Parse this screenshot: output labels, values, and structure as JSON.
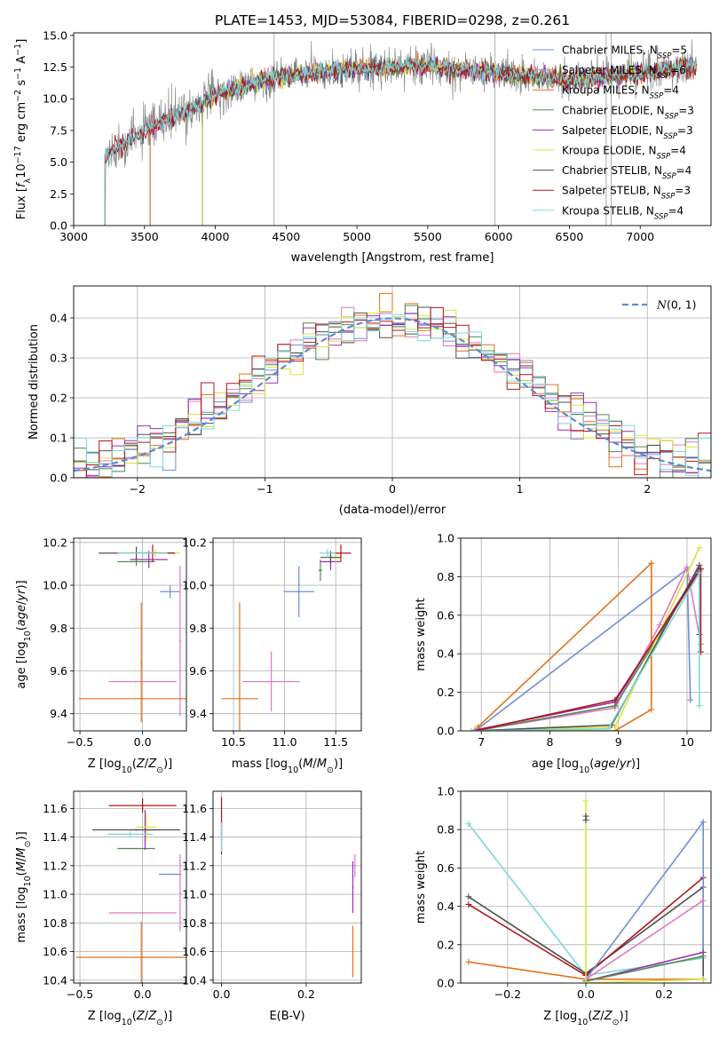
{
  "title": "PLATE=1453, MJD=53084, FIBERID=0298, z=0.261",
  "colors": {
    "chabrier_miles": "#6d8fd6",
    "salpeter_miles": "#e377c2",
    "kroupa_miles": "#e4711b",
    "chabrier_elodie": "#4f8a4f",
    "salpeter_elodie": "#9b30b5",
    "kroupa_elodie": "#d8e43a",
    "chabrier_stelib": "#505050",
    "salpeter_stelib": "#b0151b",
    "kroupa_stelib": "#7dd8dc",
    "normal_curve": "#5a8ad6",
    "grid": "#b0b0b0"
  },
  "chart_data": [
    {
      "id": "spectrum",
      "type": "line",
      "xlabel": "wavelength [Angstrom, rest frame]",
      "ylabel": "Flux [f_λ 10^-17 erg cm^-2 s^-1 A^-1]",
      "xlim": [
        3000,
        7500
      ],
      "ylim": [
        0,
        15.2
      ],
      "xticks": [
        "3000",
        "3500",
        "4000",
        "4500",
        "5000",
        "5500",
        "6000",
        "6500",
        "7000"
      ],
      "yticks": [
        "0.0",
        "2.5",
        "5.0",
        "7.5",
        "10.0",
        "12.5",
        "15.0"
      ],
      "legend": [
        "Chabrier MILES, N_SSP=5",
        "Salpeter MILES, N_SSP=6",
        "Kroupa MILES, N_SSP=4",
        "Chabrier ELODIE, N_SSP=3",
        "Salpeter ELODIE, N_SSP=3",
        "Kroupa ELODIE, N_SSP=4",
        "Chabrier STELIB, N_SSP=4",
        "Salpeter STELIB, N_SSP=3",
        "Kroupa STELIB, N_SSP=4"
      ],
      "legend_placement": "right",
      "model_start_wavelength": {
        "stelib": 3220,
        "miles": 3540,
        "elodie": 3910
      },
      "observed_range": [
        3220,
        7400
      ],
      "continuum_shape": [
        [
          3220,
          5.5
        ],
        [
          3400,
          6.8
        ],
        [
          3600,
          8.0
        ],
        [
          3800,
          9.0
        ],
        [
          4000,
          10.3
        ],
        [
          4300,
          11.3
        ],
        [
          4600,
          12.0
        ],
        [
          5000,
          12.4
        ],
        [
          5500,
          12.6
        ],
        [
          6000,
          12.0
        ],
        [
          6500,
          11.5
        ],
        [
          7000,
          12.0
        ],
        [
          7400,
          12.5
        ]
      ]
    },
    {
      "id": "residuals",
      "type": "histogram",
      "xlabel": "(data-model)/error",
      "ylabel": "Normed distribution",
      "xlim": [
        -2.5,
        2.5
      ],
      "ylim": [
        0,
        0.48
      ],
      "xticks": [
        "−2",
        "−1",
        "0",
        "1",
        "2"
      ],
      "yticks": [
        "0.0",
        "0.1",
        "0.2",
        "0.3",
        "0.4"
      ],
      "legend": [
        "N(0,1)"
      ],
      "legend_placement": "top-right",
      "bin_width": 0.1,
      "reference": "standard normal N(0,1)"
    },
    {
      "id": "age_vs_Z",
      "type": "scatter",
      "xlabel": "Z [log10(Z/Z⊙)]",
      "ylabel": "age [log10(age/yr)]",
      "xlim": [
        -0.55,
        0.35
      ],
      "ylim": [
        9.32,
        10.22
      ],
      "xticks": [
        "−0.5",
        "0.0"
      ],
      "yticks": [
        "9.4",
        "9.6",
        "9.8",
        "10.0",
        "10.2"
      ],
      "points": [
        {
          "model": "chabrier_miles",
          "x": 0.22,
          "y": 9.97,
          "xerr": 0.08,
          "yerr": 0.03
        },
        {
          "model": "salpeter_miles",
          "x": 0.0,
          "y": 9.55,
          "xerr": 0.27,
          "yerr": 0.0
        },
        {
          "model": "salpeter_miles",
          "x": 0.3,
          "y": 9.74,
          "xerr": 0.0,
          "yerr": 0.35
        },
        {
          "model": "kroupa_miles",
          "x": -0.01,
          "y": 9.47,
          "xerr": 0.5,
          "yerr": 0.0
        },
        {
          "model": "kroupa_miles",
          "x": -0.01,
          "y": 9.64,
          "xerr": 0.0,
          "yerr": 0.28
        },
        {
          "model": "chabrier_elodie",
          "x": -0.05,
          "y": 10.11,
          "xerr": 0.15,
          "yerr": 0.02
        },
        {
          "model": "salpeter_elodie",
          "x": 0.05,
          "y": 10.12,
          "xerr": 0.15,
          "yerr": 0.04
        },
        {
          "model": "kroupa_elodie",
          "x": 0.1,
          "y": 10.15,
          "xerr": 0.2,
          "yerr": 0.02
        },
        {
          "model": "chabrier_stelib",
          "x": -0.05,
          "y": 10.15,
          "xerr": 0.3,
          "yerr": 0.03
        },
        {
          "model": "salpeter_stelib",
          "x": 0.08,
          "y": 10.15,
          "xerr": 0.18,
          "yerr": 0.04
        },
        {
          "model": "kroupa_stelib",
          "x": 0.0,
          "y": 10.15,
          "xerr": 0.2,
          "yerr": 0.02
        }
      ]
    },
    {
      "id": "age_vs_mass",
      "type": "scatter",
      "xlabel": "mass [log10(M/M⊙)]",
      "ylabel": "",
      "xlim": [
        10.3,
        11.75
      ],
      "ylim": [
        9.32,
        10.22
      ],
      "xticks": [
        "10.5",
        "11.0",
        "11.5"
      ],
      "yticks": [
        "9.4",
        "9.6",
        "9.8",
        "10.0",
        "10.2"
      ],
      "points": [
        {
          "model": "chabrier_miles",
          "x": 11.14,
          "y": 9.97,
          "xerr": 0.15,
          "yerr": 0.12
        },
        {
          "model": "salpeter_miles",
          "x": 10.87,
          "y": 9.55,
          "xerr": 0.28,
          "yerr": 0.14
        },
        {
          "model": "kroupa_miles",
          "x": 10.56,
          "y": 9.47,
          "xerr": 0.18,
          "yerr": 0.45
        },
        {
          "model": "chabrier_elodie",
          "x": 11.35,
          "y": 10.07,
          "xerr": 0.02,
          "yerr": 0.05
        },
        {
          "model": "salpeter_elodie",
          "x": 11.45,
          "y": 10.11,
          "xerr": 0.1,
          "yerr": 0.04
        },
        {
          "model": "kroupa_elodie",
          "x": 11.5,
          "y": 10.13,
          "xerr": 0.08,
          "yerr": 0.02
        },
        {
          "model": "chabrier_stelib",
          "x": 11.45,
          "y": 10.13,
          "xerr": 0.1,
          "yerr": 0.03
        },
        {
          "model": "salpeter_stelib",
          "x": 11.55,
          "y": 10.15,
          "xerr": 0.1,
          "yerr": 0.04
        },
        {
          "model": "kroupa_stelib",
          "x": 11.42,
          "y": 10.15,
          "xerr": 0.08,
          "yerr": 0.02
        }
      ]
    },
    {
      "id": "weight_vs_age",
      "type": "line",
      "xlabel": "age [log10(age/yr)]",
      "ylabel": "mass weight",
      "xlim": [
        6.7,
        10.35
      ],
      "ylim": [
        0,
        1
      ],
      "xticks": [
        "7",
        "8",
        "9",
        "10"
      ],
      "yticks": [
        "0.0",
        "0.2",
        "0.4",
        "0.6",
        "0.8",
        "1.0"
      ],
      "series": [
        {
          "model": "chabrier_miles",
          "x": [
            6.95,
            10.0,
            10.05
          ],
          "y": [
            0.01,
            0.84,
            0.16
          ]
        },
        {
          "model": "salpeter_miles",
          "x": [
            6.9,
            8.95,
            9.6,
            10.0,
            10.2
          ],
          "y": [
            0.0,
            0.12,
            0.55,
            0.85,
            0.45
          ]
        },
        {
          "model": "kroupa_miles",
          "x": [
            6.95,
            9.48,
            9.48,
            8.95,
            6.9
          ],
          "y": [
            0.02,
            0.87,
            0.11,
            0.0,
            0.0
          ]
        },
        {
          "model": "chabrier_elodie",
          "x": [
            6.9,
            8.95,
            10.18
          ],
          "y": [
            0.0,
            0.13,
            0.83
          ]
        },
        {
          "model": "salpeter_elodie",
          "x": [
            6.85,
            8.95,
            10.18
          ],
          "y": [
            0.0,
            0.15,
            0.84
          ]
        },
        {
          "model": "kroupa_elodie",
          "x": [
            6.85,
            8.95,
            10.18
          ],
          "y": [
            0.0,
            0.02,
            0.95
          ]
        },
        {
          "model": "chabrier_stelib",
          "x": [
            6.9,
            8.9,
            10.18,
            10.18
          ],
          "y": [
            0.0,
            0.03,
            0.86,
            0.5
          ]
        },
        {
          "model": "salpeter_stelib",
          "x": [
            6.9,
            8.95,
            10.2,
            10.2
          ],
          "y": [
            0.0,
            0.16,
            0.84,
            0.41
          ]
        },
        {
          "model": "kroupa_stelib",
          "x": [
            6.9,
            8.85,
            10.18,
            10.18
          ],
          "y": [
            0.0,
            0.01,
            0.82,
            0.13
          ]
        }
      ]
    },
    {
      "id": "mass_vs_Z",
      "type": "scatter",
      "xlabel": "Z [log10(Z/Z⊙)]",
      "ylabel": "mass [log10(M/M⊙)]",
      "xlim": [
        -0.55,
        0.35
      ],
      "ylim": [
        10.38,
        11.72
      ],
      "xticks": [
        "−0.5",
        "0.0"
      ],
      "yticks": [
        "10.4",
        "10.6",
        "10.8",
        "11.0",
        "11.2",
        "11.4",
        "11.6"
      ],
      "points": [
        {
          "model": "chabrier_miles",
          "x": 0.22,
          "y": 11.14,
          "xerr": 0.09,
          "yerr": 0.0
        },
        {
          "model": "salpeter_miles",
          "x": 0.0,
          "y": 10.87,
          "xerr": 0.27,
          "yerr": 0.0
        },
        {
          "model": "salpeter_miles",
          "x": 0.3,
          "y": 11.01,
          "xerr": 0.0,
          "yerr": 0.27
        },
        {
          "model": "kroupa_miles",
          "x": -0.01,
          "y": 10.56,
          "xerr": 0.52,
          "yerr": 0.25
        },
        {
          "model": "chabrier_elodie",
          "x": -0.05,
          "y": 11.32,
          "xerr": 0.15,
          "yerr": 0.0
        },
        {
          "model": "salpeter_elodie",
          "x": 0.02,
          "y": 11.45,
          "xerr": 0.12,
          "yerr": 0.14
        },
        {
          "model": "kroupa_elodie",
          "x": 0.03,
          "y": 11.47,
          "xerr": 0.08,
          "yerr": 0.1
        },
        {
          "model": "chabrier_stelib",
          "x": -0.05,
          "y": 11.45,
          "xerr": 0.35,
          "yerr": 0.0
        },
        {
          "model": "salpeter_stelib",
          "x": -0.0,
          "y": 11.62,
          "xerr": 0.27,
          "yerr": 0.05
        },
        {
          "model": "kroupa_stelib",
          "x": -0.1,
          "y": 11.42,
          "xerr": 0.18,
          "yerr": 0.02
        }
      ]
    },
    {
      "id": "mass_vs_ebv",
      "type": "scatter",
      "xlabel": "E(B-V)",
      "ylabel": "",
      "xlim": [
        -0.02,
        0.33
      ],
      "ylim": [
        10.38,
        11.72
      ],
      "xticks": [
        "0.0",
        "0.2"
      ],
      "yticks": [
        "10.4",
        "10.6",
        "10.8",
        "11.0",
        "11.2",
        "11.4",
        "11.6"
      ],
      "points": [
        {
          "model": "chabrier_miles",
          "x": 0.0,
          "y": 11.42,
          "xerr": 0.0,
          "yerr": 0.05
        },
        {
          "model": "salpeter_elodie",
          "x": 0.31,
          "y": 11.05,
          "xerr": 0.0,
          "yerr": 0.18
        },
        {
          "model": "kroupa_miles",
          "x": 0.31,
          "y": 10.6,
          "xerr": 0.0,
          "yerr": 0.18
        },
        {
          "model": "salpeter_stelib",
          "x": 0.0,
          "y": 11.48,
          "xerr": 0.0,
          "yerr": 0.2
        },
        {
          "model": "kroupa_stelib",
          "x": 0.0,
          "y": 11.4,
          "xerr": 0.0,
          "yerr": 0.1
        },
        {
          "model": "salpeter_miles",
          "x": 0.315,
          "y": 11.2,
          "xerr": 0.0,
          "yerr": 0.08
        }
      ]
    },
    {
      "id": "weight_vs_Z",
      "type": "line",
      "xlabel": "Z [log10(Z/Z⊙)]",
      "ylabel": "mass weight",
      "xlim": [
        -0.32,
        0.32
      ],
      "ylim": [
        0,
        1
      ],
      "xticks": [
        "−0.2",
        "0.0",
        "0.2"
      ],
      "yticks": [
        "0.0",
        "0.2",
        "0.4",
        "0.6",
        "0.8",
        "1.0"
      ],
      "series": [
        {
          "model": "kroupa_stelib",
          "x": [
            -0.3,
            0.0,
            0.3
          ],
          "y": [
            0.83,
            0.04,
            0.13
          ]
        },
        {
          "model": "chabrier_stelib",
          "x": [
            -0.3,
            0.0,
            0.3,
            0.3
          ],
          "y": [
            0.45,
            0.05,
            0.5,
            0.02
          ]
        },
        {
          "model": "salpeter_stelib",
          "x": [
            -0.3,
            0.0,
            0.3
          ],
          "y": [
            0.41,
            0.04,
            0.55
          ]
        },
        {
          "model": "kroupa_miles",
          "x": [
            -0.3,
            0.0,
            0.3
          ],
          "y": [
            0.11,
            0.02,
            0.02
          ]
        },
        {
          "model": "chabrier_miles",
          "x": [
            0.0,
            0.3,
            0.3
          ],
          "y": [
            0.02,
            0.84,
            0.16
          ]
        },
        {
          "model": "salpeter_miles",
          "x": [
            0.0,
            0.3
          ],
          "y": [
            0.02,
            0.43
          ]
        },
        {
          "model": "salpeter_elodie",
          "x": [
            0.0,
            0.3
          ],
          "y": [
            0.01,
            0.16
          ]
        },
        {
          "model": "chabrier_elodie",
          "x": [
            0.0,
            0.3
          ],
          "y": [
            0.01,
            0.14
          ]
        },
        {
          "model": "kroupa_elodie",
          "x": [
            0.0,
            0.0,
            0.3
          ],
          "y": [
            0.95,
            0.0,
            0.02
          ]
        },
        {
          "model": "chabrier_stelib",
          "x": [
            0.0,
            0.0
          ],
          "y": [
            0.87,
            0.85
          ]
        }
      ]
    }
  ]
}
